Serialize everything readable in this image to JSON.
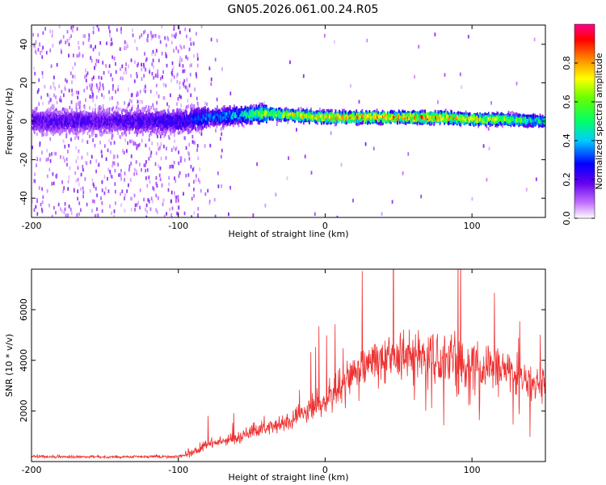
{
  "title": "GN05.2026.061.00.24.R05",
  "chart_data": [
    {
      "type": "heatmap",
      "xlabel": "Height of straight line (km)",
      "ylabel": "Frequency (Hz)",
      "xlim": [
        -200,
        150
      ],
      "ylim": [
        -50,
        50
      ],
      "xticks": [
        -200,
        -100,
        0,
        100
      ],
      "yticks": [
        -40,
        -20,
        0,
        20,
        40
      ],
      "colorbar": {
        "label": "Normalized spectral amplitude",
        "range": [
          0,
          1
        ],
        "ticks": [
          0.0,
          0.2,
          0.4,
          0.6,
          0.8
        ]
      },
      "ridge": {
        "x": [
          -200,
          -150,
          -100,
          -80,
          -60,
          -40,
          -20,
          0,
          20,
          40,
          60,
          80,
          100,
          120,
          150
        ],
        "center_hz": [
          0,
          0,
          0,
          2,
          3,
          4,
          3,
          2,
          2,
          2,
          2,
          2,
          1,
          1,
          0
        ],
        "peak_amplitude": [
          0.25,
          0.25,
          0.3,
          0.4,
          0.5,
          0.75,
          0.85,
          0.9,
          0.95,
          0.95,
          0.95,
          0.95,
          0.85,
          0.75,
          0.55
        ]
      }
    },
    {
      "type": "line",
      "xlabel": "Height of straight line (km)",
      "ylabel": "SNR (10 * v/v)",
      "xlim": [
        -200,
        150
      ],
      "ylim": [
        0,
        7600
      ],
      "xticks": [
        -200,
        -100,
        0,
        100
      ],
      "yticks": [
        2000,
        4000,
        6000
      ],
      "color": "#ee3030",
      "series": [
        {
          "name": "SNR",
          "x": [
            -200,
            -150,
            -100,
            -90,
            -80,
            -70,
            -60,
            -50,
            -40,
            -30,
            -20,
            -10,
            0,
            10,
            20,
            30,
            40,
            50,
            60,
            70,
            80,
            90,
            100,
            110,
            120,
            130,
            140,
            150
          ],
          "y": [
            200,
            180,
            200,
            350,
            700,
            800,
            900,
            1200,
            1300,
            1500,
            1700,
            2000,
            2400,
            2900,
            3500,
            3850,
            4000,
            4100,
            4100,
            4050,
            4000,
            3900,
            3850,
            3700,
            3600,
            3400,
            3000,
            3000
          ]
        }
      ]
    }
  ]
}
